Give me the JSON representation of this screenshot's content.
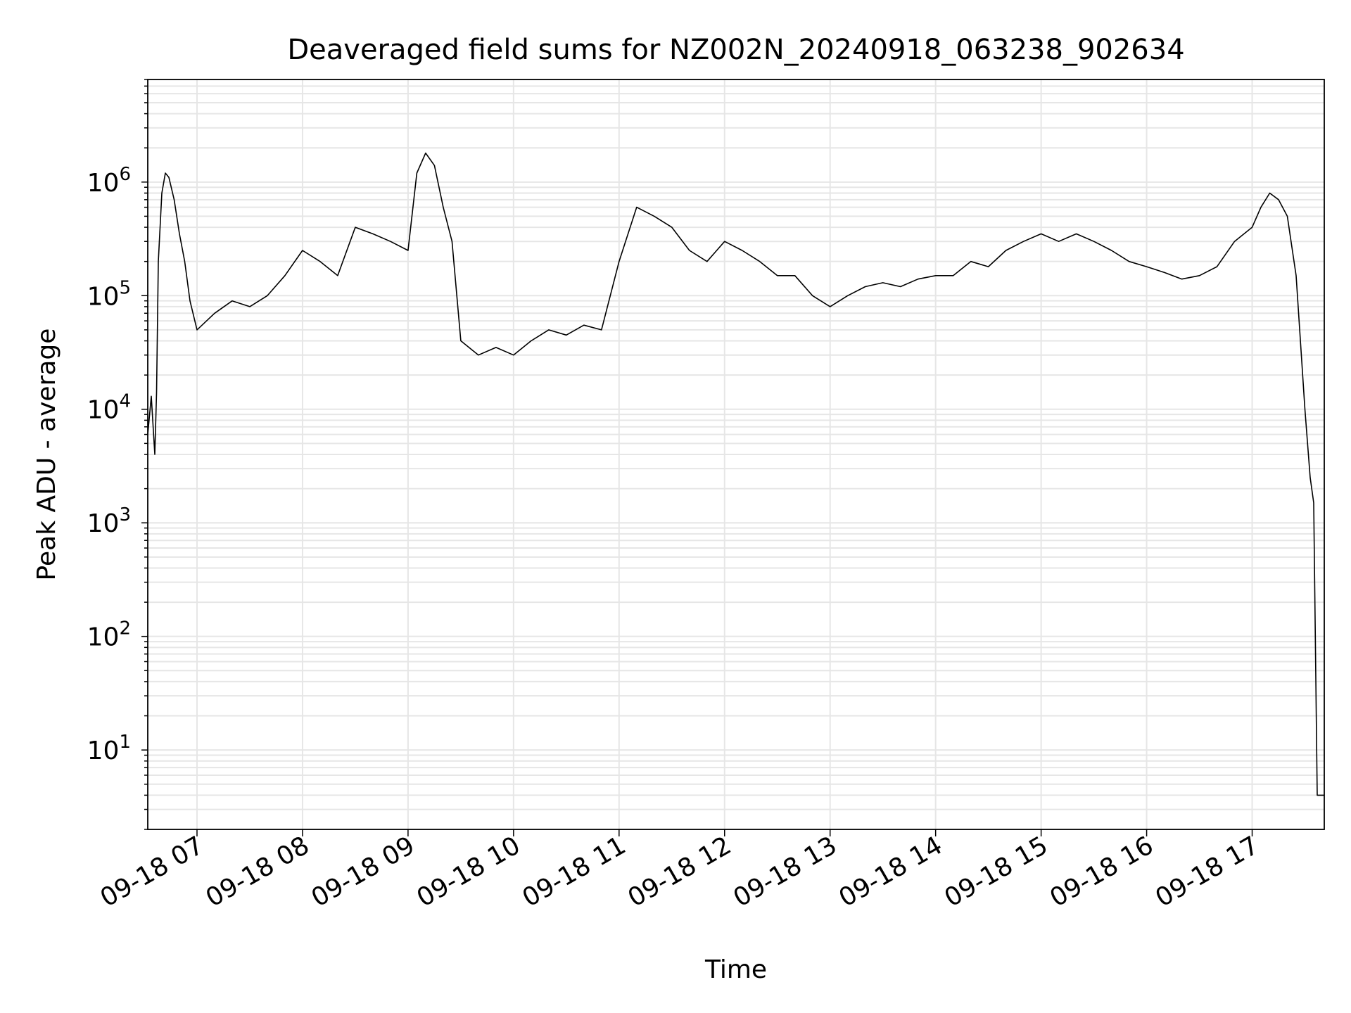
{
  "chart_data": {
    "type": "line",
    "title": "Deaveraged field sums for NZ002N_20240918_063238_902634",
    "xlabel": "Time",
    "ylabel": "Peak ADU - average",
    "yscale": "log",
    "ylim": [
      2,
      8000000
    ],
    "xlim": [
      "2024-09-18 06:32",
      "2024-09-18 17:41"
    ],
    "grid": true,
    "grid_color": "#e6e6e6",
    "line_color": "#000000",
    "x_ticks": [
      {
        "label": "09-18 07",
        "time": "2024-09-18 07:00"
      },
      {
        "label": "09-18 08",
        "time": "2024-09-18 08:00"
      },
      {
        "label": "09-18 09",
        "time": "2024-09-18 09:00"
      },
      {
        "label": "09-18 10",
        "time": "2024-09-18 10:00"
      },
      {
        "label": "09-18 11",
        "time": "2024-09-18 11:00"
      },
      {
        "label": "09-18 12",
        "time": "2024-09-18 12:00"
      },
      {
        "label": "09-18 13",
        "time": "2024-09-18 13:00"
      },
      {
        "label": "09-18 14",
        "time": "2024-09-18 14:00"
      },
      {
        "label": "09-18 15",
        "time": "2024-09-18 15:00"
      },
      {
        "label": "09-18 16",
        "time": "2024-09-18 16:00"
      },
      {
        "label": "09-18 17",
        "time": "2024-09-18 17:00"
      }
    ],
    "y_ticks": [
      {
        "base": "10",
        "exp": "1",
        "value": 10
      },
      {
        "base": "10",
        "exp": "2",
        "value": 100
      },
      {
        "base": "10",
        "exp": "3",
        "value": 1000
      },
      {
        "base": "10",
        "exp": "4",
        "value": 10000
      },
      {
        "base": "10",
        "exp": "5",
        "value": 100000
      },
      {
        "base": "10",
        "exp": "6",
        "value": 1000000
      }
    ],
    "series": [
      {
        "points": [
          [
            "2024-09-18 06:32",
            6000
          ],
          [
            "2024-09-18 06:34",
            13000
          ],
          [
            "2024-09-18 06:36",
            4000
          ],
          [
            "2024-09-18 06:37",
            14000
          ],
          [
            "2024-09-18 06:38",
            200000
          ],
          [
            "2024-09-18 06:40",
            800000
          ],
          [
            "2024-09-18 06:42",
            1200000
          ],
          [
            "2024-09-18 06:44",
            1100000
          ],
          [
            "2024-09-18 06:47",
            700000
          ],
          [
            "2024-09-18 06:50",
            350000
          ],
          [
            "2024-09-18 06:53",
            200000
          ],
          [
            "2024-09-18 06:56",
            90000
          ],
          [
            "2024-09-18 07:00",
            50000
          ],
          [
            "2024-09-18 07:10",
            70000
          ],
          [
            "2024-09-18 07:20",
            90000
          ],
          [
            "2024-09-18 07:30",
            80000
          ],
          [
            "2024-09-18 07:40",
            100000
          ],
          [
            "2024-09-18 07:50",
            150000
          ],
          [
            "2024-09-18 08:00",
            250000
          ],
          [
            "2024-09-18 08:10",
            200000
          ],
          [
            "2024-09-18 08:20",
            150000
          ],
          [
            "2024-09-18 08:30",
            400000
          ],
          [
            "2024-09-18 08:40",
            350000
          ],
          [
            "2024-09-18 08:50",
            300000
          ],
          [
            "2024-09-18 09:00",
            250000
          ],
          [
            "2024-09-18 09:05",
            1200000
          ],
          [
            "2024-09-18 09:10",
            1800000
          ],
          [
            "2024-09-18 09:15",
            1400000
          ],
          [
            "2024-09-18 09:20",
            600000
          ],
          [
            "2024-09-18 09:25",
            300000
          ],
          [
            "2024-09-18 09:30",
            40000
          ],
          [
            "2024-09-18 09:40",
            30000
          ],
          [
            "2024-09-18 09:50",
            35000
          ],
          [
            "2024-09-18 10:00",
            30000
          ],
          [
            "2024-09-18 10:10",
            40000
          ],
          [
            "2024-09-18 10:20",
            50000
          ],
          [
            "2024-09-18 10:30",
            45000
          ],
          [
            "2024-09-18 10:40",
            55000
          ],
          [
            "2024-09-18 10:50",
            50000
          ],
          [
            "2024-09-18 11:00",
            200000
          ],
          [
            "2024-09-18 11:10",
            600000
          ],
          [
            "2024-09-18 11:20",
            500000
          ],
          [
            "2024-09-18 11:30",
            400000
          ],
          [
            "2024-09-18 11:40",
            250000
          ],
          [
            "2024-09-18 11:50",
            200000
          ],
          [
            "2024-09-18 12:00",
            300000
          ],
          [
            "2024-09-18 12:10",
            250000
          ],
          [
            "2024-09-18 12:20",
            200000
          ],
          [
            "2024-09-18 12:30",
            150000
          ],
          [
            "2024-09-18 12:40",
            150000
          ],
          [
            "2024-09-18 12:50",
            100000
          ],
          [
            "2024-09-18 13:00",
            80000
          ],
          [
            "2024-09-18 13:10",
            100000
          ],
          [
            "2024-09-18 13:20",
            120000
          ],
          [
            "2024-09-18 13:30",
            130000
          ],
          [
            "2024-09-18 13:40",
            120000
          ],
          [
            "2024-09-18 13:50",
            140000
          ],
          [
            "2024-09-18 14:00",
            150000
          ],
          [
            "2024-09-18 14:10",
            150000
          ],
          [
            "2024-09-18 14:20",
            200000
          ],
          [
            "2024-09-18 14:30",
            180000
          ],
          [
            "2024-09-18 14:40",
            250000
          ],
          [
            "2024-09-18 14:50",
            300000
          ],
          [
            "2024-09-18 15:00",
            350000
          ],
          [
            "2024-09-18 15:10",
            300000
          ],
          [
            "2024-09-18 15:20",
            350000
          ],
          [
            "2024-09-18 15:30",
            300000
          ],
          [
            "2024-09-18 15:40",
            250000
          ],
          [
            "2024-09-18 15:50",
            200000
          ],
          [
            "2024-09-18 16:00",
            180000
          ],
          [
            "2024-09-18 16:10",
            160000
          ],
          [
            "2024-09-18 16:20",
            140000
          ],
          [
            "2024-09-18 16:30",
            150000
          ],
          [
            "2024-09-18 16:40",
            180000
          ],
          [
            "2024-09-18 16:50",
            300000
          ],
          [
            "2024-09-18 17:00",
            400000
          ],
          [
            "2024-09-18 17:05",
            600000
          ],
          [
            "2024-09-18 17:10",
            800000
          ],
          [
            "2024-09-18 17:15",
            700000
          ],
          [
            "2024-09-18 17:20",
            500000
          ],
          [
            "2024-09-18 17:25",
            150000
          ],
          [
            "2024-09-18 17:30",
            10000
          ],
          [
            "2024-09-18 17:33",
            2500
          ],
          [
            "2024-09-18 17:35",
            1500
          ],
          [
            "2024-09-18 17:37",
            4
          ],
          [
            "2024-09-18 17:41",
            4
          ]
        ]
      }
    ]
  }
}
